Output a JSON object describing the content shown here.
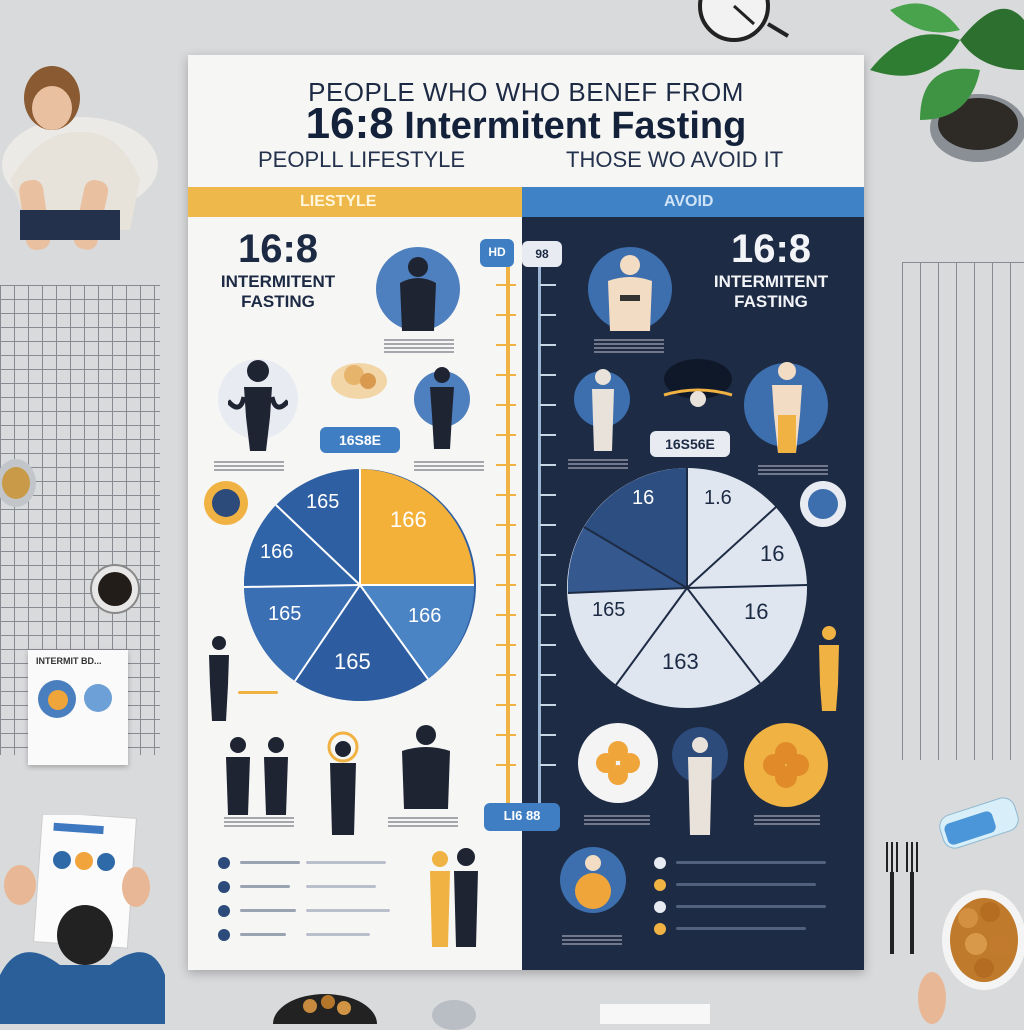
{
  "poster": {
    "title_line1": "PEOPLE WHO WHO BENEF FROM",
    "title_number": "16:8",
    "title_rest": "Intermitent Fasting",
    "subtitle_left": "PEOPLL LIFESTYLE",
    "subtitle_right": "THOSE WO AVOID IT"
  },
  "left_panel": {
    "band_label": "LIESTYLE",
    "big_number": "16:8",
    "big_text_line1": "INTERMITENT",
    "big_text_line2": "FASTING",
    "pill_label": "16S8E",
    "pie_labels": [
      "165",
      "166",
      "166",
      "165",
      "165",
      "166"
    ],
    "colors": {
      "band": "#eeb84a",
      "pie_dark": "#2f5fa3",
      "pie_mid": "#4a84c4",
      "pie_accent": "#f4b13a"
    }
  },
  "right_panel": {
    "band_label": "AVOID",
    "big_number": "16:8",
    "big_text_line1": "INTERMITENT",
    "big_text_line2": "FASTING",
    "pill_label": "16S56E",
    "pie_labels": [
      "16",
      "1.6",
      "16",
      "16",
      "163",
      "165"
    ],
    "colors": {
      "band": "#3f83c6",
      "panel": "#1d2b45",
      "pie_dark": "#2d4e80",
      "pie_light": "#dfe6f0"
    }
  },
  "center_scale": {
    "top_left": "HD",
    "top_right": "98",
    "bottom_label": "LI6 88"
  },
  "desk": {
    "pamphlet_title": "INTERMIT BD..."
  }
}
